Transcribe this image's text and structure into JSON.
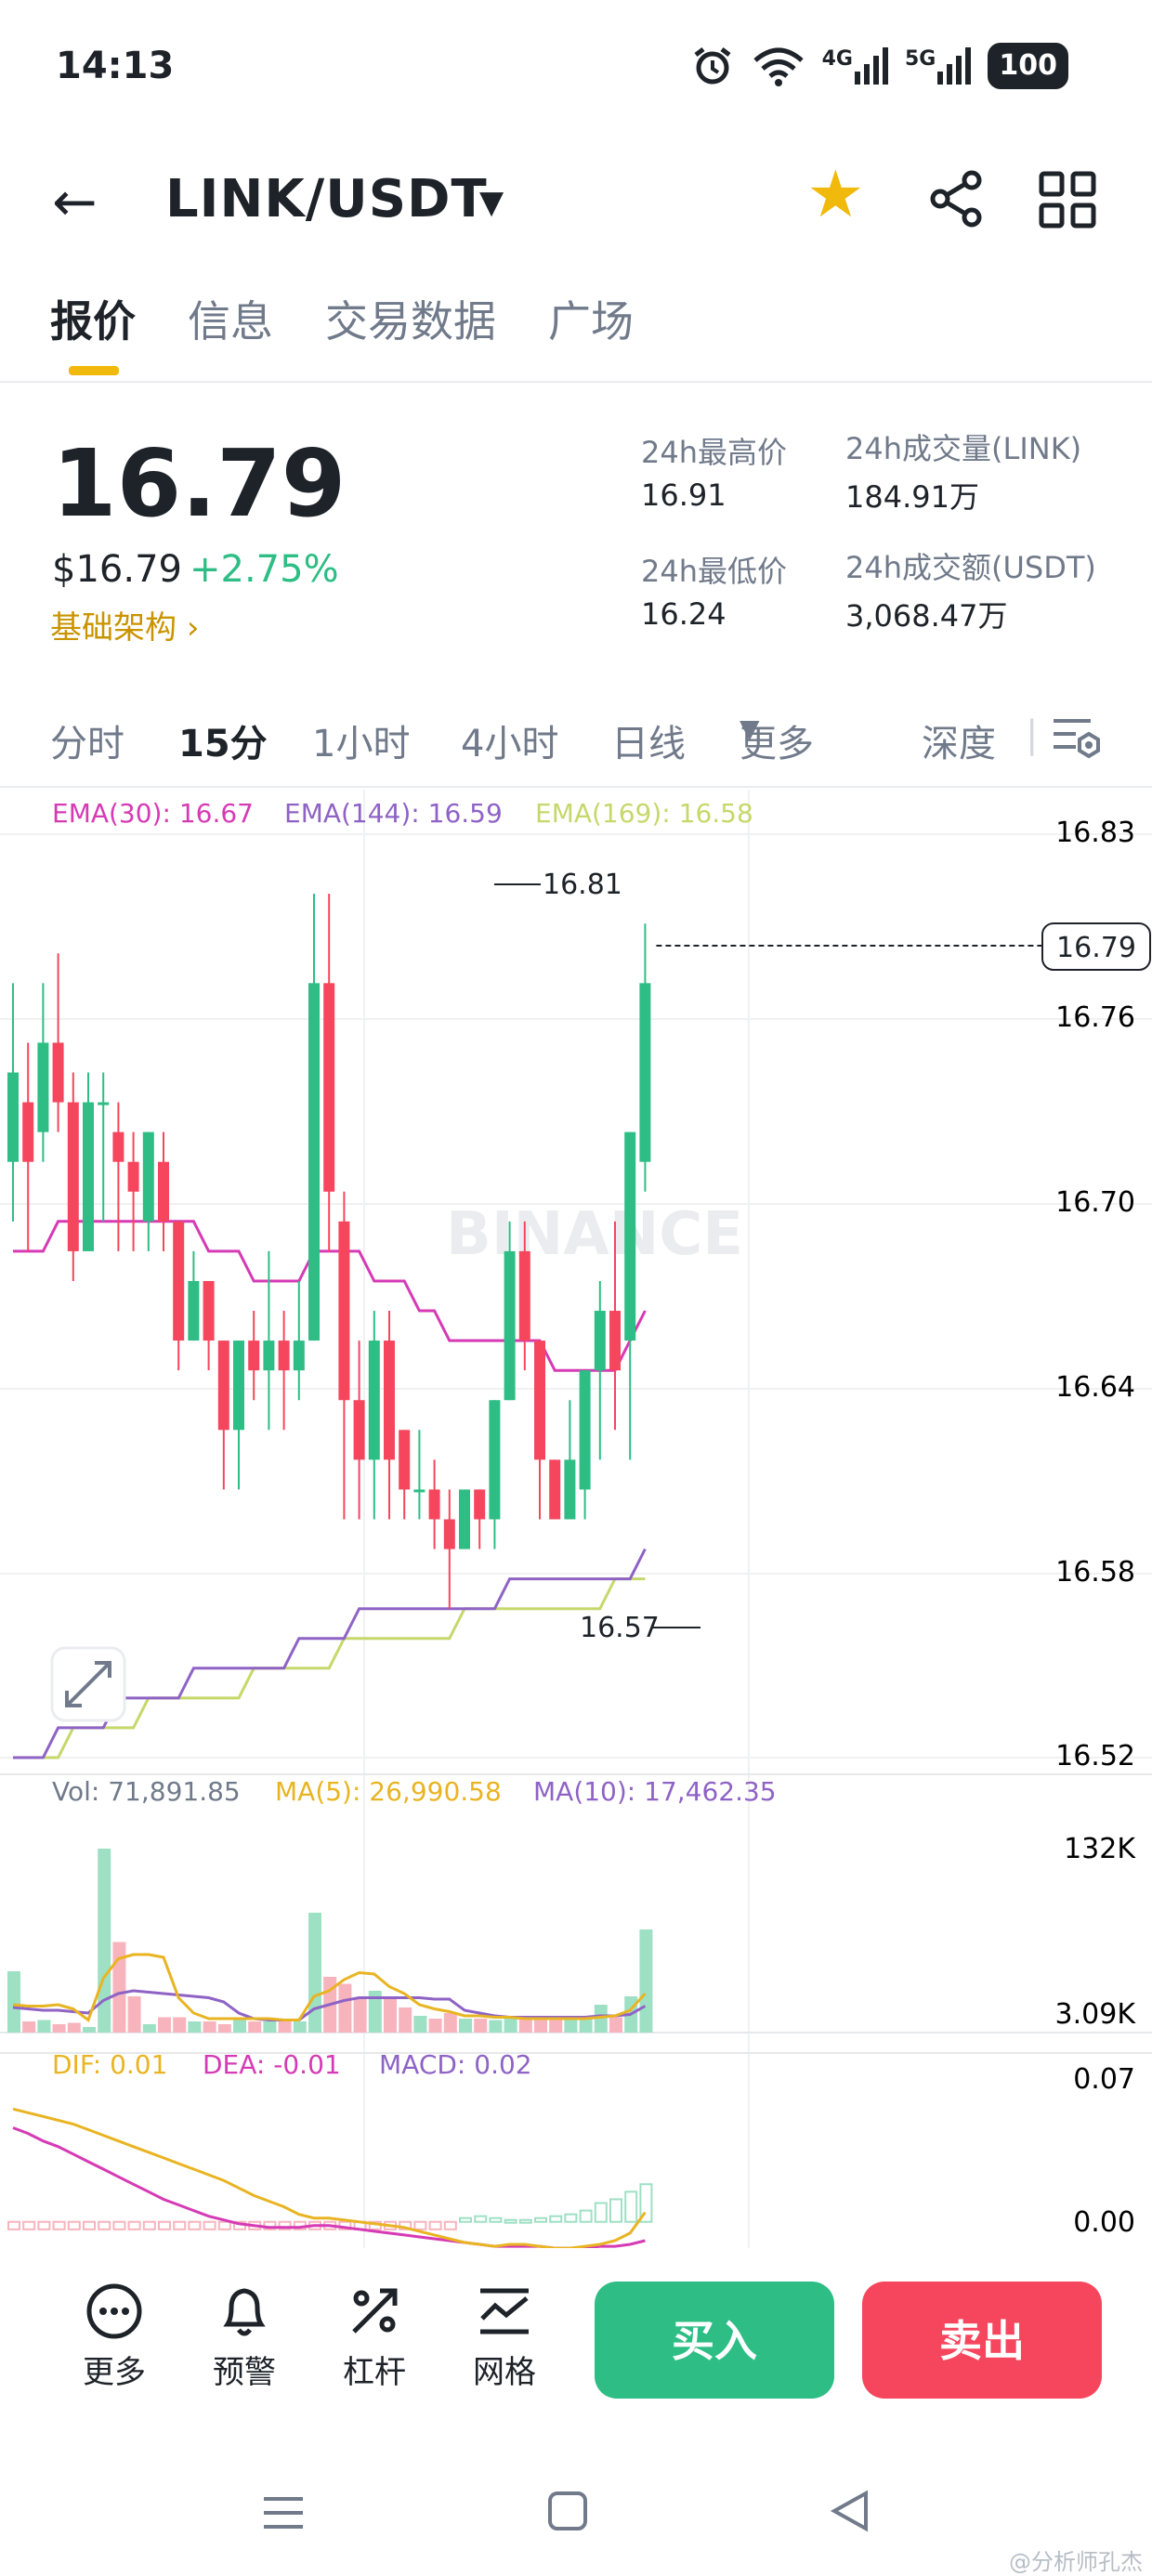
{
  "status_bar": {
    "time": "14:13",
    "net_4g": "4G",
    "net_5g": "5G",
    "battery": "100"
  },
  "header": {
    "pair": "LINK/USDT",
    "icons": [
      "back-arrow-icon",
      "dropdown-caret-icon",
      "star-icon",
      "share-icon",
      "grid-icon"
    ],
    "star_color": "#f0b90b"
  },
  "tabs": [
    {
      "label": "报价",
      "active": true
    },
    {
      "label": "信息",
      "active": false
    },
    {
      "label": "交易数据",
      "active": false
    },
    {
      "label": "广场",
      "active": false
    }
  ],
  "ticker": {
    "last_price": "16.79",
    "usd_price": "$16.79",
    "change": "+2.75%",
    "sector": "基础架构",
    "high_label": "24h最高价",
    "high_value": "16.91",
    "low_label": "24h最低价",
    "low_value": "16.24",
    "vol_label": "24h成交量(LINK)",
    "vol_value": "184.91万",
    "turnover_label": "24h成交额(USDT)",
    "turnover_value": "3,068.47万"
  },
  "intervals": [
    {
      "label": "分时",
      "active": false
    },
    {
      "label": "15分",
      "active": true
    },
    {
      "label": "1小时",
      "active": false
    },
    {
      "label": "4小时",
      "active": false
    },
    {
      "label": "日线",
      "active": false
    },
    {
      "label": "更多",
      "active": false
    },
    {
      "label": "深度",
      "active": false
    }
  ],
  "colors": {
    "up": "#2ebd85",
    "down": "#f6465d",
    "ema30": "#d63ab5",
    "ema144": "#8e63c5",
    "ema169": "#c6d86a",
    "ma5": "#e9b422",
    "ma10": "#8e63c5"
  },
  "chart_data": [
    {
      "type": "candlestick",
      "legend": [
        "EMA(30): 16.67",
        "EMA(144): 16.59",
        "EMA(169): 16.58"
      ],
      "y_ticks": [
        "16.83",
        "16.76",
        "16.70",
        "16.64",
        "16.58",
        "16.52"
      ],
      "ylim": [
        16.52,
        16.83
      ],
      "last_price_label": "16.79",
      "max_label": "16.81",
      "min_label": "16.57",
      "watermark": "BINANCE",
      "candles": [
        [
          16.72,
          16.75,
          16.78,
          16.7
        ],
        [
          16.74,
          16.72,
          16.76,
          16.69
        ],
        [
          16.73,
          16.76,
          16.78,
          16.72
        ],
        [
          16.76,
          16.74,
          16.79,
          16.73
        ],
        [
          16.74,
          16.69,
          16.75,
          16.68
        ],
        [
          16.69,
          16.74,
          16.75,
          16.69
        ],
        [
          16.74,
          16.74,
          16.75,
          16.7
        ],
        [
          16.73,
          16.72,
          16.74,
          16.69
        ],
        [
          16.72,
          16.71,
          16.73,
          16.69
        ],
        [
          16.7,
          16.73,
          16.73,
          16.69
        ],
        [
          16.72,
          16.7,
          16.73,
          16.69
        ],
        [
          16.7,
          16.66,
          16.7,
          16.65
        ],
        [
          16.66,
          16.68,
          16.69,
          16.66
        ],
        [
          16.68,
          16.66,
          16.68,
          16.65
        ],
        [
          16.66,
          16.63,
          16.66,
          16.61
        ],
        [
          16.63,
          16.66,
          16.66,
          16.61
        ],
        [
          16.66,
          16.65,
          16.67,
          16.64
        ],
        [
          16.65,
          16.66,
          16.69,
          16.63
        ],
        [
          16.66,
          16.65,
          16.67,
          16.63
        ],
        [
          16.65,
          16.66,
          16.68,
          16.64
        ],
        [
          16.66,
          16.78,
          16.81,
          16.66
        ],
        [
          16.78,
          16.71,
          16.81,
          16.69
        ],
        [
          16.7,
          16.64,
          16.71,
          16.6
        ],
        [
          16.64,
          16.62,
          16.66,
          16.6
        ],
        [
          16.62,
          16.66,
          16.67,
          16.6
        ],
        [
          16.66,
          16.62,
          16.67,
          16.6
        ],
        [
          16.63,
          16.61,
          16.63,
          16.6
        ],
        [
          16.61,
          16.61,
          16.63,
          16.6
        ],
        [
          16.61,
          16.6,
          16.62,
          16.59
        ],
        [
          16.6,
          16.59,
          16.61,
          16.57
        ],
        [
          16.59,
          16.61,
          16.61,
          16.59
        ],
        [
          16.61,
          16.6,
          16.61,
          16.59
        ],
        [
          16.6,
          16.64,
          16.64,
          16.59
        ],
        [
          16.64,
          16.69,
          16.7,
          16.64
        ],
        [
          16.69,
          16.66,
          16.7,
          16.65
        ],
        [
          16.66,
          16.62,
          16.66,
          16.6
        ],
        [
          16.62,
          16.6,
          16.62,
          16.6
        ],
        [
          16.6,
          16.62,
          16.64,
          16.6
        ],
        [
          16.61,
          16.65,
          16.65,
          16.6
        ],
        [
          16.65,
          16.67,
          16.68,
          16.62
        ],
        [
          16.67,
          16.65,
          16.7,
          16.63
        ],
        [
          16.66,
          16.73,
          16.73,
          16.62
        ],
        [
          16.72,
          16.78,
          16.8,
          16.71
        ]
      ],
      "ema30": [
        16.69,
        16.69,
        16.69,
        16.7,
        16.7,
        16.7,
        16.7,
        16.7,
        16.7,
        16.7,
        16.7,
        16.7,
        16.7,
        16.69,
        16.69,
        16.69,
        16.68,
        16.68,
        16.68,
        16.68,
        16.69,
        16.69,
        16.69,
        16.69,
        16.68,
        16.68,
        16.68,
        16.67,
        16.67,
        16.66,
        16.66,
        16.66,
        16.66,
        16.66,
        16.66,
        16.66,
        16.65,
        16.65,
        16.65,
        16.65,
        16.65,
        16.66,
        16.67
      ],
      "ema144": [
        16.52,
        16.52,
        16.52,
        16.53,
        16.53,
        16.53,
        16.53,
        16.54,
        16.54,
        16.54,
        16.54,
        16.54,
        16.55,
        16.55,
        16.55,
        16.55,
        16.55,
        16.55,
        16.55,
        16.56,
        16.56,
        16.56,
        16.56,
        16.57,
        16.57,
        16.57,
        16.57,
        16.57,
        16.57,
        16.57,
        16.57,
        16.57,
        16.57,
        16.58,
        16.58,
        16.58,
        16.58,
        16.58,
        16.58,
        16.58,
        16.58,
        16.58,
        16.59
      ],
      "ema169": [
        16.52,
        16.52,
        16.52,
        16.52,
        16.53,
        16.53,
        16.53,
        16.53,
        16.53,
        16.54,
        16.54,
        16.54,
        16.54,
        16.54,
        16.54,
        16.54,
        16.55,
        16.55,
        16.55,
        16.55,
        16.55,
        16.55,
        16.56,
        16.56,
        16.56,
        16.56,
        16.56,
        16.56,
        16.56,
        16.56,
        16.57,
        16.57,
        16.57,
        16.57,
        16.57,
        16.57,
        16.57,
        16.57,
        16.57,
        16.57,
        16.58,
        16.58,
        16.58
      ]
    },
    {
      "type": "bar",
      "legend": [
        "Vol: 71,891.85",
        "MA(5): 26,990.58",
        "MA(10): 17,462.35"
      ],
      "y_ticks": [
        "132K",
        "3.09K"
      ],
      "ylim": [
        0,
        132000
      ],
      "volumes": [
        44000,
        8000,
        9000,
        6000,
        7000,
        4000,
        132000,
        65000,
        26000,
        6000,
        11000,
        11000,
        8000,
        8000,
        6000,
        11000,
        8000,
        8000,
        8000,
        8000,
        86000,
        40000,
        35000,
        25000,
        30000,
        26000,
        18000,
        12000,
        10000,
        14000,
        10000,
        10000,
        9000,
        10000,
        10000,
        10000,
        10000,
        10000,
        11000,
        20000,
        11000,
        26000,
        74000
      ],
      "ma5": [
        20000,
        19000,
        19000,
        20000,
        17000,
        9000,
        39000,
        53000,
        56000,
        56000,
        54000,
        25000,
        14000,
        10000,
        10000,
        10000,
        10000,
        10000,
        9000,
        9000,
        26000,
        30000,
        38000,
        43000,
        42000,
        33000,
        28000,
        20000,
        17000,
        15000,
        12000,
        12000,
        11000,
        11000,
        10000,
        10000,
        10000,
        10000,
        10000,
        11000,
        12000,
        16000,
        28000
      ],
      "ma10": [
        18000,
        17000,
        16000,
        16000,
        15000,
        14000,
        23000,
        28000,
        30000,
        29000,
        28000,
        27000,
        26000,
        25000,
        22000,
        14000,
        10000,
        9000,
        9000,
        9000,
        17000,
        20000,
        23000,
        25000,
        25000,
        25000,
        25000,
        25000,
        24000,
        24000,
        16000,
        14000,
        12000,
        11000,
        11000,
        11000,
        11000,
        11000,
        11000,
        12000,
        12000,
        13000,
        19000
      ]
    },
    {
      "type": "macd",
      "legend": [
        "DIF: 0.01",
        "DEA: -0.01",
        "MACD: 0.02"
      ],
      "y_ticks": [
        "0.07",
        "0.00"
      ],
      "ylim": [
        -0.01,
        0.07
      ],
      "dif": [
        0.06,
        0.058,
        0.056,
        0.054,
        0.052,
        0.049,
        0.046,
        0.043,
        0.04,
        0.037,
        0.034,
        0.031,
        0.028,
        0.025,
        0.022,
        0.018,
        0.014,
        0.011,
        0.008,
        0.004,
        0.002,
        0.002,
        0.001,
        0.0,
        -0.001,
        -0.002,
        -0.003,
        -0.005,
        -0.007,
        -0.009,
        -0.011,
        -0.012,
        -0.013,
        -0.012,
        -0.012,
        -0.013,
        -0.014,
        -0.014,
        -0.013,
        -0.012,
        -0.01,
        -0.006,
        0.005
      ],
      "dea": [
        0.05,
        0.047,
        0.043,
        0.04,
        0.036,
        0.032,
        0.028,
        0.024,
        0.02,
        0.016,
        0.012,
        0.009,
        0.006,
        0.003,
        0.001,
        -0.001,
        -0.002,
        -0.003,
        -0.003,
        -0.003,
        -0.002,
        -0.002,
        -0.003,
        -0.004,
        -0.005,
        -0.006,
        -0.007,
        -0.008,
        -0.009,
        -0.01,
        -0.011,
        -0.012,
        -0.013,
        -0.013,
        -0.013,
        -0.013,
        -0.014,
        -0.014,
        -0.014,
        -0.013,
        -0.013,
        -0.012,
        -0.01
      ],
      "hist": [
        -0.004,
        -0.004,
        -0.004,
        -0.004,
        -0.004,
        -0.004,
        -0.004,
        -0.004,
        -0.004,
        -0.004,
        -0.004,
        -0.004,
        -0.004,
        -0.004,
        -0.004,
        -0.004,
        -0.004,
        -0.004,
        -0.004,
        -0.004,
        -0.004,
        -0.004,
        -0.004,
        -0.004,
        -0.004,
        -0.004,
        -0.004,
        -0.004,
        -0.004,
        -0.004,
        0.002,
        0.003,
        0.002,
        0.001,
        0.001,
        0.002,
        0.003,
        0.004,
        0.006,
        0.01,
        0.012,
        0.016,
        0.02
      ]
    }
  ],
  "toolbar": [
    {
      "label": "更多",
      "icon": "more-dots-icon"
    },
    {
      "label": "预警",
      "icon": "bell-icon"
    },
    {
      "label": "杠杆",
      "icon": "leverage-icon"
    },
    {
      "label": "网格",
      "icon": "grid-bot-icon"
    }
  ],
  "actions": {
    "buy": "买入",
    "sell": "卖出"
  },
  "footer_watermark": "@分析师孔杰"
}
